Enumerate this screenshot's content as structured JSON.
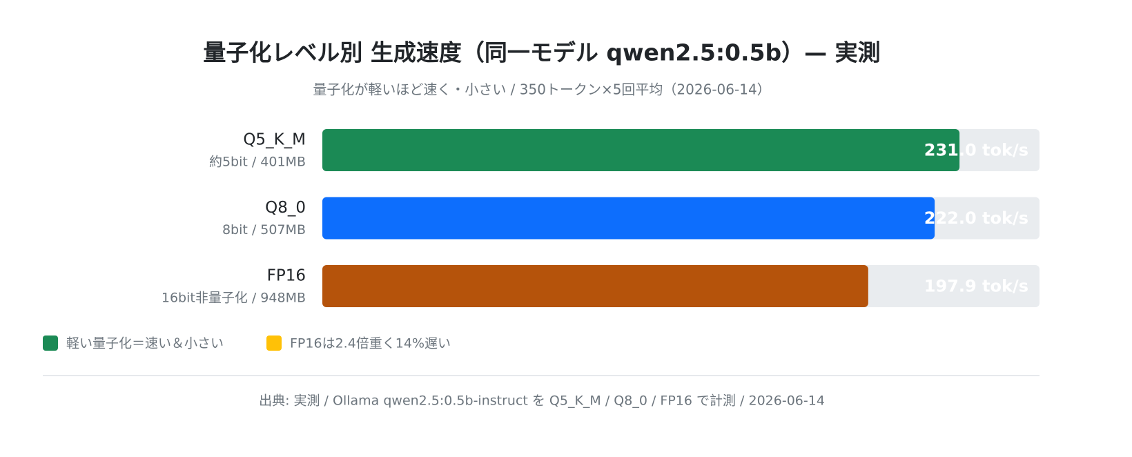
{
  "chart_data": {
    "type": "hbar",
    "title": "量子化レベル別 生成速度（同一モデル qwen2.5:0.5b）— 実測",
    "subtitle": "量子化が軽いほど速く・小さい / 350トークン×5回平均（2026-06-14）",
    "categories": [
      "Q5_K_M",
      "Q8_0",
      "FP16"
    ],
    "category_notes": [
      "約5bit / 401MB",
      "8bit / 507MB",
      "16bit非量子化 / 948MB"
    ],
    "values": [
      231.0,
      222.0,
      197.9
    ],
    "value_labels": [
      "231.0 tok/s",
      "222.0 tok/s",
      "197.9 tok/s"
    ],
    "colors": [
      "#1b8a55",
      "#0d6efd",
      "#b5530b"
    ],
    "xlim": [
      0,
      260
    ],
    "legend": [
      {
        "label": "軽い量子化＝速い＆小さい",
        "color": "#1b8a55"
      },
      {
        "label": "FP16は2.4倍重く14%遅い",
        "color": "#ffc107"
      }
    ],
    "source": "出典: 実測 / Ollama qwen2.5:0.5b-instruct を Q5_K_M / Q8_0 / FP16 で計測 / 2026-06-14"
  }
}
